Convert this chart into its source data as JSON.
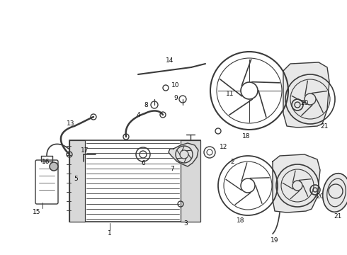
{
  "background_color": "#ffffff",
  "line_color": "#3a3a3a",
  "label_color": "#111111",
  "fig_width": 4.9,
  "fig_height": 3.6,
  "dpi": 100
}
